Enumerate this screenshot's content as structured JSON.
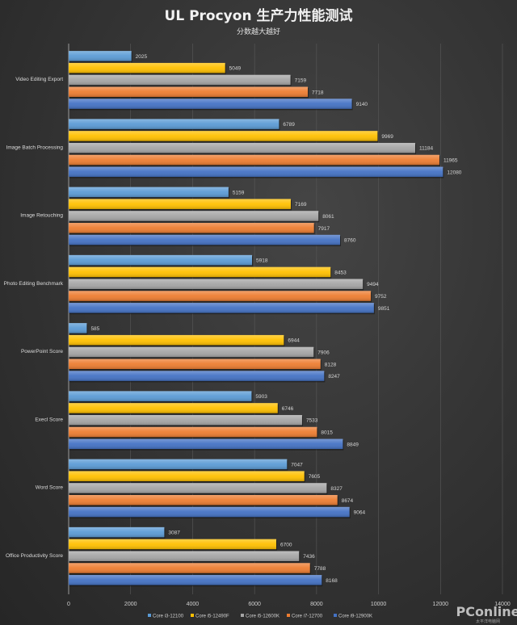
{
  "chart_data": {
    "type": "bar",
    "orientation": "horizontal",
    "title": "UL Procyon 生产力性能测试",
    "subtitle": "分数越大越好",
    "xlabel": "",
    "ylabel": "",
    "xlim": [
      0,
      14000
    ],
    "xticks": [
      0,
      2000,
      4000,
      6000,
      8000,
      10000,
      12000,
      14000
    ],
    "grid": "vertical",
    "legend_position": "bottom",
    "categories": [
      "Video Editing Export",
      "Image Batch Processing",
      "Image Retouching",
      "Photo Editing Benchmark",
      "PowerPoint Score",
      "Execl Score",
      "Word Score",
      "Office Productivity Score"
    ],
    "series": [
      {
        "name": "Core i3-12100",
        "color": "#5b9bd5",
        "values": [
          2025,
          6789,
          5159,
          5918,
          585,
          5903,
          7047,
          3087
        ]
      },
      {
        "name": "Core i5-12490F",
        "color": "#ffc000",
        "values": [
          5049,
          9969,
          7169,
          8453,
          6944,
          6746,
          7605,
          6700
        ]
      },
      {
        "name": "Core i5-12600K",
        "color": "#a5a5a5",
        "values": [
          7159,
          11184,
          8061,
          9494,
          7906,
          7533,
          8327,
          7436
        ]
      },
      {
        "name": "Core i7-12700",
        "color": "#ed7d31",
        "values": [
          7718,
          11965,
          7917,
          9752,
          8128,
          8015,
          8674,
          7788
        ]
      },
      {
        "name": "Core i9-12900K",
        "color": "#4472c4",
        "values": [
          9140,
          12080,
          8760,
          9851,
          8247,
          8849,
          9064,
          8168
        ]
      }
    ]
  },
  "watermark": {
    "brand": "PConline",
    "tagline": "太平洋电脑网"
  }
}
